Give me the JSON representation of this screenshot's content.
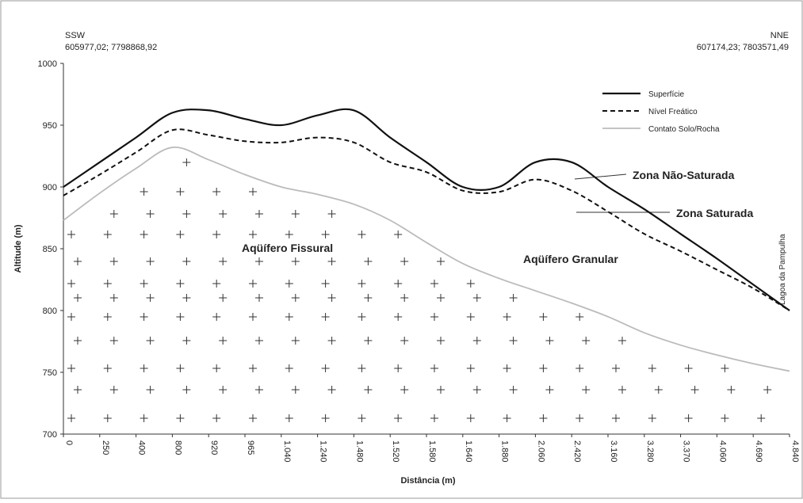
{
  "chart_data": {
    "type": "line",
    "x_label": "Distância (m)",
    "y_label": "Altitude (m)",
    "left_label": "SSW",
    "left_coords": "605977,02; 7798868,92",
    "right_label": "NNE",
    "right_coords": "607174,23; 7803571,49",
    "annotations": [
      "Zona Não-Saturada",
      "Zona Saturada",
      "Aqüífero Fissural",
      "Aqüífero Granular",
      "Lagoa da Pampulha"
    ],
    "categories": [
      "0",
      "250",
      "400",
      "800",
      "920",
      "965",
      "1.040",
      "1.240",
      "1.480",
      "1.520",
      "1.580",
      "1.640",
      "1.880",
      "2.060",
      "2.420",
      "3.160",
      "3.280",
      "3.370",
      "4.060",
      "4.690",
      "4.840"
    ],
    "series": [
      {
        "name": "Superfície",
        "color": "#111111",
        "style": "solid",
        "width": 2.2,
        "values": [
          900,
          920,
          940,
          960,
          962,
          955,
          950,
          958,
          962,
          940,
          920,
          900,
          900,
          920,
          920,
          900,
          882,
          862,
          842,
          821,
          800
        ]
      },
      {
        "name": "Nível Freático",
        "color": "#111111",
        "style": "dashed",
        "width": 2,
        "values": [
          893,
          910,
          928,
          946,
          942,
          937,
          936,
          940,
          936,
          920,
          912,
          897,
          896,
          906,
          897,
          880,
          862,
          848,
          833,
          818,
          800
        ]
      },
      {
        "name": "Contato Solo/Rocha",
        "color": "#bbbbbb",
        "style": "solid",
        "width": 1.8,
        "values": [
          873,
          895,
          915,
          932,
          922,
          910,
          900,
          894,
          886,
          873,
          855,
          838,
          826,
          816,
          806,
          795,
          782,
          772,
          764,
          757,
          751
        ]
      }
    ],
    "ylim": [
      700,
      1000
    ],
    "yticks": [
      700,
      750,
      800,
      850,
      900,
      950,
      1000
    ]
  }
}
